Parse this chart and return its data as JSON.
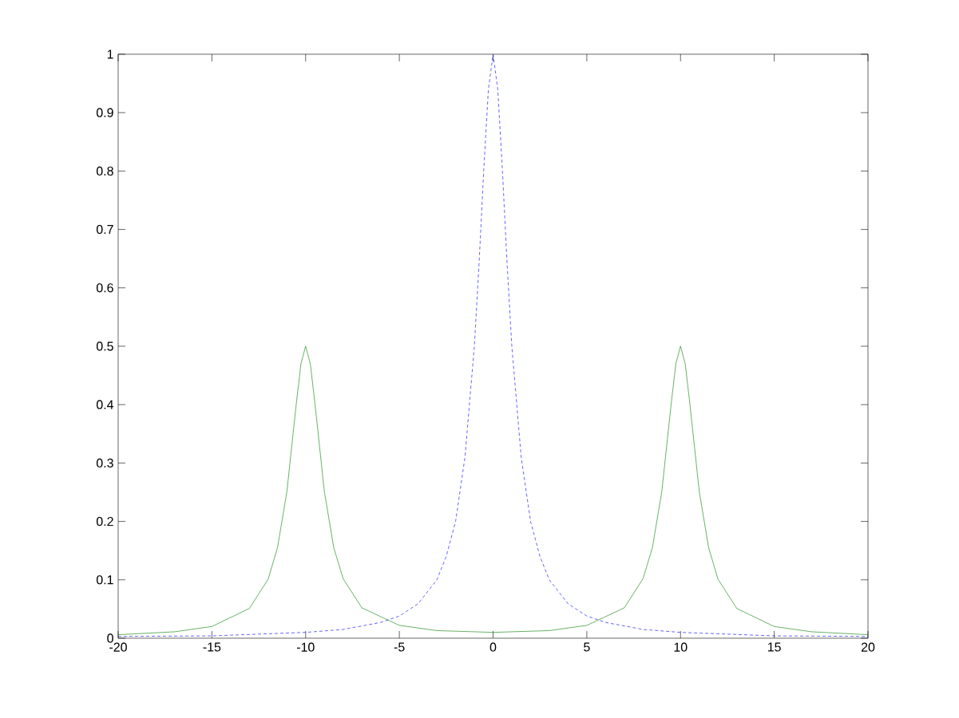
{
  "chart_data": {
    "type": "line",
    "xlim": [
      -20,
      20
    ],
    "ylim": [
      0,
      1
    ],
    "xticks": [
      -20,
      -15,
      -10,
      -5,
      0,
      5,
      10,
      15,
      20
    ],
    "yticks": [
      0,
      0.1,
      0.2,
      0.3,
      0.4,
      0.5,
      0.6,
      0.7,
      0.8,
      0.9,
      1
    ],
    "grid": false,
    "marker": "none",
    "series": [
      {
        "color": "#0000ff",
        "line_style": "dashed",
        "x": [
          -20,
          -15,
          -10,
          -8,
          -6,
          -5,
          -4,
          -3,
          -2.5,
          -2,
          -1.5,
          -1,
          -0.75,
          -0.5,
          -0.25,
          0,
          0.25,
          0.5,
          0.75,
          1,
          1.5,
          2,
          2.5,
          3,
          4,
          5,
          6,
          8,
          10,
          15,
          20
        ],
        "values": [
          0.003,
          0.004,
          0.01,
          0.015,
          0.027,
          0.038,
          0.059,
          0.1,
          0.14,
          0.2,
          0.31,
          0.5,
          0.64,
          0.8,
          0.94,
          1,
          0.94,
          0.8,
          0.64,
          0.5,
          0.31,
          0.2,
          0.14,
          0.1,
          0.059,
          0.038,
          0.027,
          0.015,
          0.01,
          0.004,
          0.003
        ]
      },
      {
        "color": "#008000",
        "line_style": "solid",
        "x": [
          -20,
          -17,
          -15,
          -13,
          -12,
          -11.5,
          -11,
          -10.5,
          -10.25,
          -10,
          -9.75,
          -9.5,
          -9,
          -8.5,
          -8,
          -7,
          -5,
          -3,
          0,
          3,
          5,
          7,
          8,
          8.5,
          9,
          9.5,
          9.75,
          10,
          10.25,
          10.5,
          11,
          11.5,
          12,
          13,
          15,
          17,
          20
        ],
        "values": [
          0.006,
          0.011,
          0.02,
          0.051,
          0.101,
          0.155,
          0.251,
          0.401,
          0.47,
          0.5,
          0.47,
          0.401,
          0.251,
          0.155,
          0.102,
          0.052,
          0.022,
          0.013,
          0.01,
          0.013,
          0.022,
          0.052,
          0.102,
          0.155,
          0.251,
          0.401,
          0.47,
          0.5,
          0.47,
          0.401,
          0.251,
          0.155,
          0.101,
          0.051,
          0.02,
          0.011,
          0.006
        ]
      }
    ]
  }
}
